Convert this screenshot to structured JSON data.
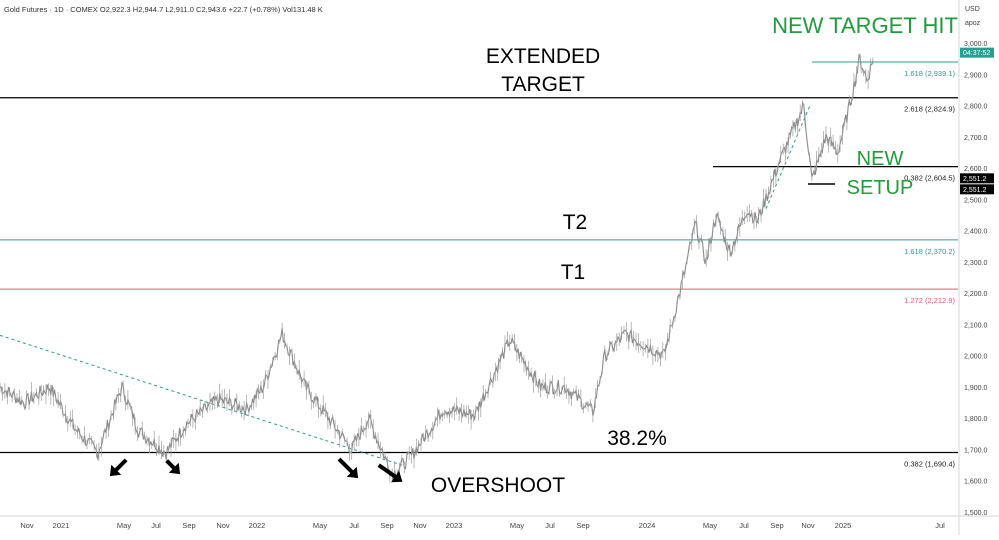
{
  "symbol_info": "Gold Futures · 1D · COMEX  O2,922.3  H2,944.7  L2,911.0  C2,943.6  +22.7 (+0.78%)  Vol131.48 K",
  "chart_data": {
    "type": "line",
    "series": [
      {
        "x": [
          "2020-10-01",
          "2020-11-15",
          "2021-01-01",
          "2021-02-15",
          "2021-03-31",
          "2021-05-15",
          "2021-06-15",
          "2021-08-05",
          "2021-09-10",
          "2021-11-10",
          "2022-01-01",
          "2022-02-01",
          "2022-03-08",
          "2022-04-20",
          "2022-07-15",
          "2022-08-15",
          "2022-09-28",
          "2022-11-03",
          "2023-01-01",
          "2023-02-28",
          "2023-05-04",
          "2023-06-30",
          "2023-08-15",
          "2023-10-05",
          "2023-10-27",
          "2023-12-04",
          "2024-01-15",
          "2024-02-14",
          "2024-03-21",
          "2024-04-12",
          "2024-05-02",
          "2024-05-20",
          "2024-06-15",
          "2024-07-17",
          "2024-08-05",
          "2024-09-15",
          "2024-10-30",
          "2024-11-14",
          "2024-12-10",
          "2025-01-01",
          "2025-01-20",
          "2025-02-11",
          "2025-02-24",
          "2025-03-07"
        ],
        "y": [
          1900,
          1850,
          1900,
          1770,
          1690,
          1900,
          1760,
          1690,
          1780,
          1860,
          1830,
          1900,
          2070,
          1900,
          1700,
          1800,
          1620,
          1680,
          1830,
          1810,
          2050,
          1900,
          1900,
          1820,
          2000,
          2070,
          2030,
          2000,
          2250,
          2420,
          2300,
          2450,
          2330,
          2470,
          2430,
          2620,
          2800,
          2560,
          2700,
          2650,
          2780,
          2950,
          2880,
          2943.6
        ]
      }
    ],
    "ylim": [
      1500,
      3000
    ],
    "y_ticks": [
      "3,000.0",
      "2,900.0",
      "2,800.0",
      "2,700.0",
      "2,600.0",
      "2,500.0",
      "2,400.0",
      "2,300.0",
      "2,200.0",
      "2,100.0",
      "2,000.0",
      "1,900.0",
      "1,800.0",
      "1,700.0",
      "1,600.0",
      "1,500.0"
    ],
    "x_ticks": [
      "Nov",
      "2021",
      "May",
      "Jul",
      "Sep",
      "Nov",
      "2022",
      "May",
      "Jul",
      "Sep",
      "Nov",
      "2023",
      "May",
      "Jul",
      "Sep",
      "2024",
      "May",
      "Jul",
      "Sep",
      "Nov",
      "2025",
      "Jul"
    ],
    "y_axis_unit": "USD",
    "y_axis_unit2": "apoz",
    "price_badges": [
      "04:37:52",
      "2,551.2",
      "2,551.2"
    ],
    "levels": [
      {
        "label": "1.618 (2,939.1)",
        "value": 2939.1,
        "color": "#2a9d8f"
      },
      {
        "label": "2.618 (2,824.9)",
        "value": 2824.9,
        "color": "#000000"
      },
      {
        "label": "0.382 (2,604.5)",
        "value": 2604.5,
        "color": "#000000"
      },
      {
        "label": "1.618 (2,370.2)",
        "value": 2370.2,
        "color": "#2a9d8f"
      },
      {
        "label": "1.272 (2,212.9)",
        "value": 2212.9,
        "color": "#e05a6b"
      },
      {
        "label": "0.382 (1,690.4)",
        "value": 1690.4,
        "color": "#000000"
      }
    ],
    "annotations": {
      "extended_target_line1": "EXTENDED",
      "extended_target_line2": "TARGET",
      "new_target_hit": "NEW TARGET HIT",
      "new_line1": "NEW",
      "new_line2": "SETUP",
      "t2": "T2",
      "t1": "T1",
      "retracement": "38.2%",
      "overshoot": "OVERSHOOT"
    },
    "colors": {
      "price": "#8a8a8a",
      "green_text": "#1f9d3a",
      "teal": "#2a9d8f",
      "red": "#e05a6b",
      "black": "#000000"
    }
  }
}
